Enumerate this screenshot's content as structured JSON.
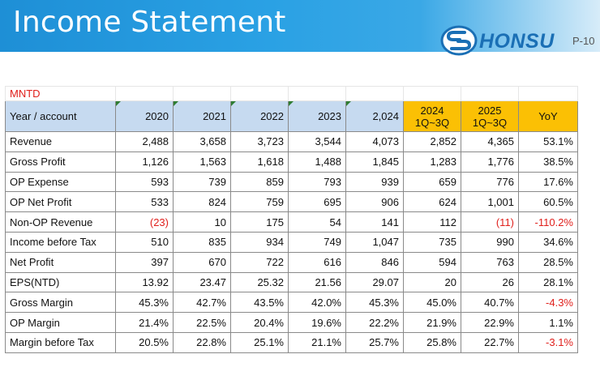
{
  "header": {
    "title": "Income Statement",
    "logo_text": "HONSU",
    "page_number": "P-10"
  },
  "table": {
    "unit": "MNTD",
    "columns": [
      "Year / account",
      "2020",
      "2021",
      "2022",
      "2023",
      "2,024",
      "2024\n1Q~3Q",
      "2025\n1Q~3Q",
      "YoY"
    ],
    "rows": [
      {
        "label": "Revenue",
        "values": [
          "2,488",
          "3,658",
          "3,723",
          "3,544",
          "4,073",
          "2,852",
          "4,365",
          "53.1%"
        ]
      },
      {
        "label": "Gross Profit",
        "values": [
          "1,126",
          "1,563",
          "1,618",
          "1,488",
          "1,845",
          "1,283",
          "1,776",
          "38.5%"
        ]
      },
      {
        "label": "OP Expense",
        "values": [
          "593",
          "739",
          "859",
          "793",
          "939",
          "659",
          "776",
          "17.6%"
        ]
      },
      {
        "label": "OP Net Profit",
        "values": [
          "533",
          "824",
          "759",
          "695",
          "906",
          "624",
          "1,001",
          "60.5%"
        ]
      },
      {
        "label": "Non-OP Revenue",
        "values": [
          "(23)",
          "10",
          "175",
          "54",
          "141",
          "112",
          "(11)",
          "-110.2%"
        ]
      },
      {
        "label": "Income before Tax",
        "values": [
          "510",
          "835",
          "934",
          "749",
          "1,047",
          "735",
          "990",
          "34.6%"
        ]
      },
      {
        "label": "Net Profit",
        "values": [
          "397",
          "670",
          "722",
          "616",
          "846",
          "594",
          "763",
          "28.5%"
        ]
      },
      {
        "label": "EPS(NTD)",
        "values": [
          "13.92",
          "23.47",
          "25.32",
          "21.56",
          "29.07",
          "20",
          "26",
          "28.1%"
        ]
      },
      {
        "label": "Gross Margin",
        "values": [
          "45.3%",
          "42.7%",
          "43.5%",
          "42.0%",
          "45.3%",
          "45.0%",
          "40.7%",
          "-4.3%"
        ]
      },
      {
        "label": "OP Margin",
        "values": [
          "21.4%",
          "22.5%",
          "20.4%",
          "19.6%",
          "22.2%",
          "21.9%",
          "22.9%",
          "1.1%"
        ]
      },
      {
        "label": "Margin before Tax",
        "values": [
          "20.5%",
          "22.8%",
          "25.1%",
          "21.1%",
          "25.7%",
          "25.8%",
          "22.7%",
          "-3.1%"
        ]
      }
    ]
  },
  "colors": {
    "header_blue": "#2aa1e4",
    "column_header_bg": "#c6daf0",
    "highlight_header_bg": "#fbc004",
    "negative_text": "#e0201c",
    "logo_blue": "#1a6fb5"
  }
}
